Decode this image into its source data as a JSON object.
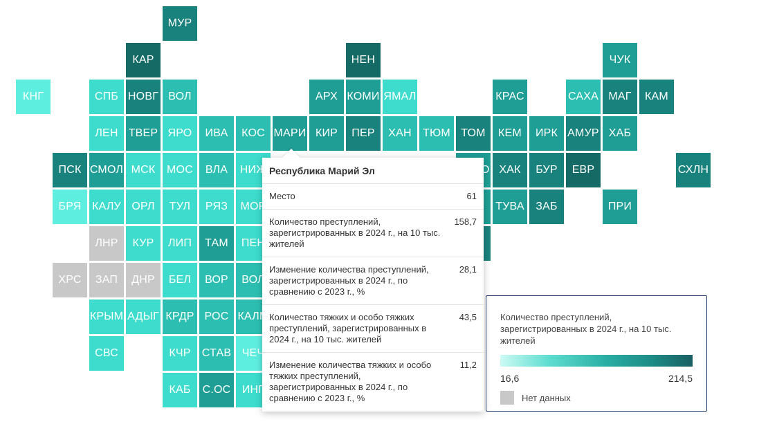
{
  "colors": {
    "c1": "#5eeee0",
    "c2": "#3ddccd",
    "c3": "#2cbfb1",
    "c4": "#1f9e95",
    "c5": "#1a827d",
    "c6": "#156a66",
    "nodata": "#c8c8c8"
  },
  "regions": [
    {
      "label": "МУР",
      "col": 4,
      "row": 0,
      "c": "c5"
    },
    {
      "label": "КАР",
      "col": 3,
      "row": 1,
      "c": "c6"
    },
    {
      "label": "НЕН",
      "col": 9,
      "row": 1,
      "c": "c6"
    },
    {
      "label": "ЧУК",
      "col": 16,
      "row": 1,
      "c": "c4"
    },
    {
      "label": "КНГ",
      "col": 0,
      "row": 2,
      "c": "c1"
    },
    {
      "label": "СПБ",
      "col": 2,
      "row": 2,
      "c": "c2"
    },
    {
      "label": "НОВГ",
      "col": 3,
      "row": 2,
      "c": "c5"
    },
    {
      "label": "ВОЛ",
      "col": 4,
      "row": 2,
      "c": "c3"
    },
    {
      "label": "АРХ",
      "col": 8,
      "row": 2,
      "c": "c4"
    },
    {
      "label": "КОМИ",
      "col": 9,
      "row": 2,
      "c": "c4"
    },
    {
      "label": "ЯМАЛ",
      "col": 10,
      "row": 2,
      "c": "c2"
    },
    {
      "label": "КРАС",
      "col": 13,
      "row": 2,
      "c": "c4"
    },
    {
      "label": "САХА",
      "col": 15,
      "row": 2,
      "c": "c3"
    },
    {
      "label": "МАГ",
      "col": 16,
      "row": 2,
      "c": "c5"
    },
    {
      "label": "КАМ",
      "col": 17,
      "row": 2,
      "c": "c5"
    },
    {
      "label": "ЛЕН",
      "col": 2,
      "row": 3,
      "c": "c2"
    },
    {
      "label": "ТВЕР",
      "col": 3,
      "row": 3,
      "c": "c4"
    },
    {
      "label": "ЯРО",
      "col": 4,
      "row": 3,
      "c": "c2"
    },
    {
      "label": "ИВА",
      "col": 5,
      "row": 3,
      "c": "c3"
    },
    {
      "label": "КОС",
      "col": 6,
      "row": 3,
      "c": "c3"
    },
    {
      "label": "МАРИ",
      "col": 7,
      "row": 3,
      "c": "c4"
    },
    {
      "label": "КИР",
      "col": 8,
      "row": 3,
      "c": "c4"
    },
    {
      "label": "ПЕР",
      "col": 9,
      "row": 3,
      "c": "c5"
    },
    {
      "label": "ХАН",
      "col": 10,
      "row": 3,
      "c": "c3"
    },
    {
      "label": "ТЮМ",
      "col": 11,
      "row": 3,
      "c": "c3"
    },
    {
      "label": "ТОМ",
      "col": 12,
      "row": 3,
      "c": "c5"
    },
    {
      "label": "КЕМ",
      "col": 13,
      "row": 3,
      "c": "c4"
    },
    {
      "label": "ИРК",
      "col": 14,
      "row": 3,
      "c": "c4"
    },
    {
      "label": "АМУР",
      "col": 15,
      "row": 3,
      "c": "c5"
    },
    {
      "label": "ХАБ",
      "col": 16,
      "row": 3,
      "c": "c4"
    },
    {
      "label": "ПСК",
      "col": 1,
      "row": 4,
      "c": "c5"
    },
    {
      "label": "СМОЛ",
      "col": 2,
      "row": 4,
      "c": "c4"
    },
    {
      "label": "МСК",
      "col": 3,
      "row": 4,
      "c": "c2"
    },
    {
      "label": "МОС",
      "col": 4,
      "row": 4,
      "c": "c2"
    },
    {
      "label": "ВЛА",
      "col": 5,
      "row": 4,
      "c": "c3"
    },
    {
      "label": "НИЖ",
      "col": 6,
      "row": 4,
      "c": "c2"
    },
    {
      "label": "НОВО",
      "col": 12,
      "row": 4,
      "c": "c4"
    },
    {
      "label": "ХАК",
      "col": 13,
      "row": 4,
      "c": "c5"
    },
    {
      "label": "БУР",
      "col": 14,
      "row": 4,
      "c": "c5"
    },
    {
      "label": "ЕВР",
      "col": 15,
      "row": 4,
      "c": "c6"
    },
    {
      "label": "СХЛН",
      "col": 18,
      "row": 4,
      "c": "c5"
    },
    {
      "label": "БРЯ",
      "col": 1,
      "row": 5,
      "c": "c1"
    },
    {
      "label": "КАЛУ",
      "col": 2,
      "row": 5,
      "c": "c2"
    },
    {
      "label": "ОРЛ",
      "col": 3,
      "row": 5,
      "c": "c2"
    },
    {
      "label": "ТУЛ",
      "col": 4,
      "row": 5,
      "c": "c2"
    },
    {
      "label": "РЯЗ",
      "col": 5,
      "row": 5,
      "c": "c2"
    },
    {
      "label": "МОР",
      "col": 6,
      "row": 5,
      "c": "c2"
    },
    {
      "label": "ТУВА",
      "col": 13,
      "row": 5,
      "c": "c4"
    },
    {
      "label": "ЗАБ",
      "col": 14,
      "row": 5,
      "c": "c5"
    },
    {
      "label": "ПРИ",
      "col": 16,
      "row": 5,
      "c": "c4"
    },
    {
      "label": "ЛНР",
      "col": 2,
      "row": 6,
      "c": "nodata"
    },
    {
      "label": "КУР",
      "col": 3,
      "row": 6,
      "c": "c2"
    },
    {
      "label": "ЛИП",
      "col": 4,
      "row": 6,
      "c": "c2"
    },
    {
      "label": "ТАМ",
      "col": 5,
      "row": 6,
      "c": "c4"
    },
    {
      "label": "ПЕН",
      "col": 6,
      "row": 6,
      "c": "c2"
    },
    {
      "label": "ХРС",
      "col": 1,
      "row": 7,
      "c": "nodata"
    },
    {
      "label": "ЗАП",
      "col": 2,
      "row": 7,
      "c": "nodata"
    },
    {
      "label": "ДНР",
      "col": 3,
      "row": 7,
      "c": "nodata"
    },
    {
      "label": "БЕЛ",
      "col": 4,
      "row": 7,
      "c": "c2"
    },
    {
      "label": "ВОР",
      "col": 5,
      "row": 7,
      "c": "c3"
    },
    {
      "label": "ВОЛ",
      "col": 6,
      "row": 7,
      "c": "c3"
    },
    {
      "label": "КРЫМ",
      "col": 2,
      "row": 8,
      "c": "c2"
    },
    {
      "label": "АДЫГ",
      "col": 3,
      "row": 8,
      "c": "c2"
    },
    {
      "label": "КРДР",
      "col": 4,
      "row": 8,
      "c": "c3"
    },
    {
      "label": "РОС",
      "col": 5,
      "row": 8,
      "c": "c3"
    },
    {
      "label": "КАЛМ",
      "col": 6,
      "row": 8,
      "c": "c3"
    },
    {
      "label": "СВС",
      "col": 2,
      "row": 9,
      "c": "c2"
    },
    {
      "label": "КЧР",
      "col": 4,
      "row": 9,
      "c": "c2"
    },
    {
      "label": "СТАВ",
      "col": 5,
      "row": 9,
      "c": "c3"
    },
    {
      "label": "ЧЕЧ",
      "col": 6,
      "row": 9,
      "c": "c1"
    },
    {
      "label": "КАБ",
      "col": 4,
      "row": 10,
      "c": "c2"
    },
    {
      "label": "С.ОС",
      "col": 5,
      "row": 10,
      "c": "c4"
    },
    {
      "label": "ИНГ",
      "col": 6,
      "row": 10,
      "c": "c2"
    },
    {
      "label": "",
      "col": 12,
      "row": 5,
      "c": "c4"
    },
    {
      "label": "",
      "col": 12,
      "row": 6,
      "c": "c5"
    }
  ],
  "tooltip": {
    "title": "Республика Марий Эл",
    "rows": [
      {
        "label": "Место",
        "value": "61"
      },
      {
        "label": "Количество преступлений, зарегистрированных в 2024 г., на 10 тыс. жителей",
        "value": "158,7"
      },
      {
        "label": "Изменение количества преступлений, зарегистрированных в 2024 г., по сравнению с 2023 г., %",
        "value": "28,1"
      },
      {
        "label": "Количество тяжких и особо тяжких преступлений, зарегистрированных в 2024 г., на 10 тыс. жителей",
        "value": "43,5"
      },
      {
        "label": "Изменение количества тяжких и особо тяжких преступлений, зарегистрированных в 2024 г., по сравнению с 2023 г., %",
        "value": "11,2"
      }
    ]
  },
  "legend": {
    "title": "Количество преступлений, зарегистрированных в 2024 г., на 10 тыс. жителей",
    "min": "16,6",
    "max": "214,5",
    "nodata_label": "Нет данных"
  }
}
